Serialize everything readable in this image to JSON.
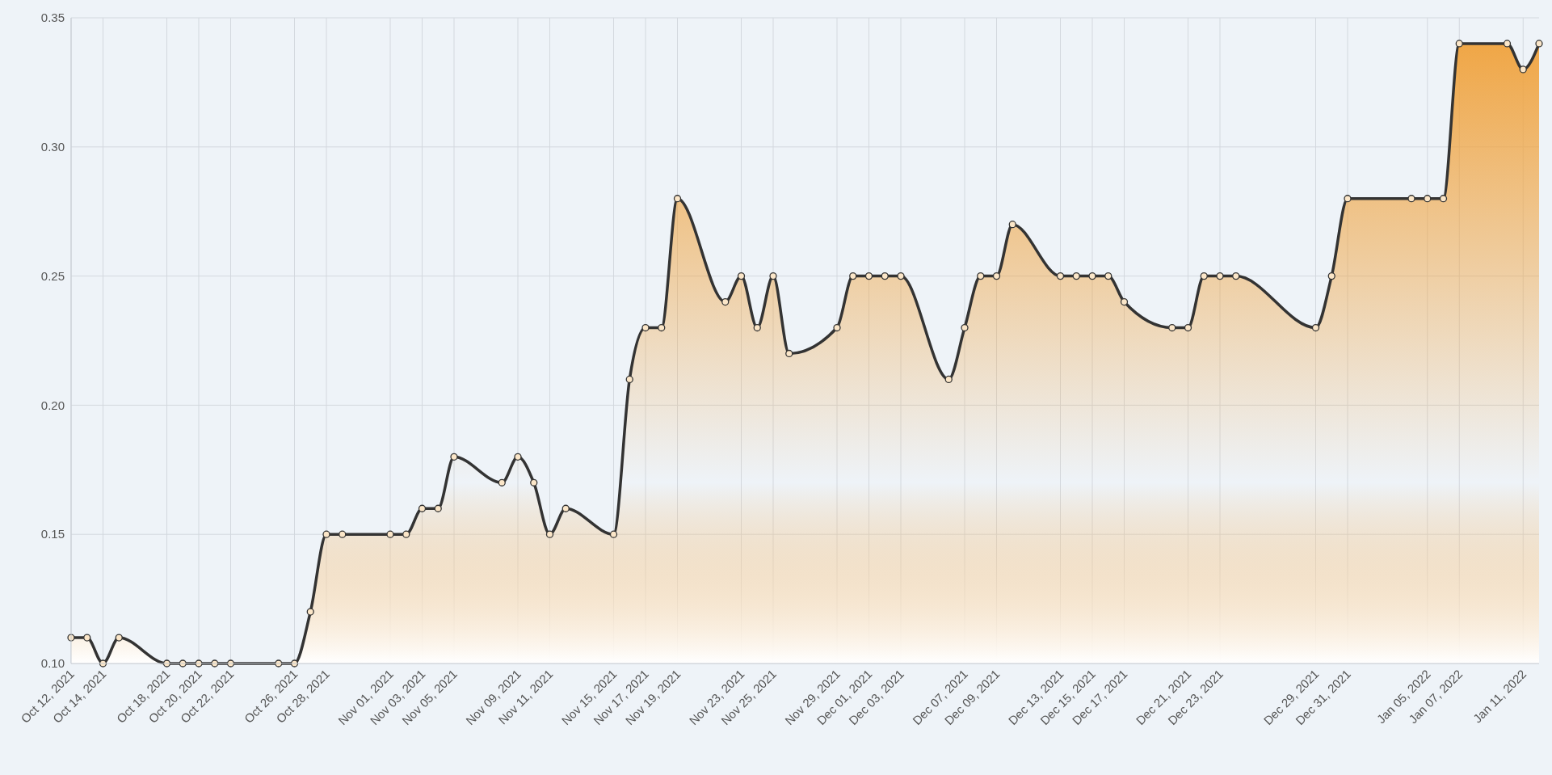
{
  "chart_data": {
    "type": "area",
    "x": [
      "2021-10-12",
      "2021-10-13",
      "2021-10-14",
      "2021-10-15",
      "2021-10-18",
      "2021-10-19",
      "2021-10-20",
      "2021-10-21",
      "2021-10-22",
      "2021-10-25",
      "2021-10-26",
      "2021-10-27",
      "2021-10-28",
      "2021-10-29",
      "2021-11-01",
      "2021-11-02",
      "2021-11-03",
      "2021-11-04",
      "2021-11-05",
      "2021-11-08",
      "2021-11-09",
      "2021-11-10",
      "2021-11-11",
      "2021-11-12",
      "2021-11-15",
      "2021-11-16",
      "2021-11-17",
      "2021-11-18",
      "2021-11-19",
      "2021-11-22",
      "2021-11-23",
      "2021-11-24",
      "2021-11-25",
      "2021-11-26",
      "2021-11-29",
      "2021-11-30",
      "2021-12-01",
      "2021-12-02",
      "2021-12-03",
      "2021-12-06",
      "2021-12-07",
      "2021-12-08",
      "2021-12-09",
      "2021-12-10",
      "2021-12-13",
      "2021-12-14",
      "2021-12-15",
      "2021-12-16",
      "2021-12-17",
      "2021-12-20",
      "2021-12-21",
      "2021-12-22",
      "2021-12-23",
      "2021-12-24",
      "2021-12-29",
      "2021-12-30",
      "2021-12-31",
      "2022-01-04",
      "2022-01-05",
      "2022-01-06",
      "2022-01-07",
      "2022-01-10",
      "2022-01-11",
      "2022-01-12"
    ],
    "series": [
      {
        "color": "#f0a23c",
        "values": [
          0.11,
          0.11,
          0.1,
          0.11,
          0.1,
          0.1,
          0.1,
          0.1,
          0.1,
          0.1,
          0.1,
          0.12,
          0.15,
          0.15,
          0.15,
          0.15,
          0.16,
          0.16,
          0.18,
          0.17,
          0.18,
          0.17,
          0.15,
          0.16,
          0.15,
          0.21,
          0.23,
          0.23,
          0.28,
          0.24,
          0.25,
          0.23,
          0.25,
          0.22,
          0.23,
          0.25,
          0.25,
          0.25,
          0.25,
          0.21,
          0.23,
          0.25,
          0.25,
          0.27,
          0.25,
          0.25,
          0.25,
          0.25,
          0.24,
          0.23,
          0.23,
          0.25,
          0.25,
          0.25,
          0.23,
          0.25,
          0.28,
          0.28,
          0.28,
          0.28,
          0.34,
          0.34,
          0.33,
          0.34
        ]
      }
    ],
    "xlim": [
      "2021-10-12",
      "2022-01-12"
    ],
    "xticks": [
      {
        "value": "2021-10-12",
        "label": "Oct 12, 2021"
      },
      {
        "value": "2021-10-14",
        "label": "Oct 14, 2021"
      },
      {
        "value": "2021-10-18",
        "label": "Oct 18, 2021"
      },
      {
        "value": "2021-10-20",
        "label": "Oct 20, 2021"
      },
      {
        "value": "2021-10-22",
        "label": "Oct 22, 2021"
      },
      {
        "value": "2021-10-26",
        "label": "Oct 26, 2021"
      },
      {
        "value": "2021-10-28",
        "label": "Oct 28, 2021"
      },
      {
        "value": "2021-11-01",
        "label": "Nov 01, 2021"
      },
      {
        "value": "2021-11-03",
        "label": "Nov 03, 2021"
      },
      {
        "value": "2021-11-05",
        "label": "Nov 05, 2021"
      },
      {
        "value": "2021-11-09",
        "label": "Nov 09, 2021"
      },
      {
        "value": "2021-11-11",
        "label": "Nov 11, 2021"
      },
      {
        "value": "2021-11-15",
        "label": "Nov 15, 2021"
      },
      {
        "value": "2021-11-17",
        "label": "Nov 17, 2021"
      },
      {
        "value": "2021-11-19",
        "label": "Nov 19, 2021"
      },
      {
        "value": "2021-11-23",
        "label": "Nov 23, 2021"
      },
      {
        "value": "2021-11-25",
        "label": "Nov 25, 2021"
      },
      {
        "value": "2021-11-29",
        "label": "Nov 29, 2021"
      },
      {
        "value": "2021-12-01",
        "label": "Dec 01, 2021"
      },
      {
        "value": "2021-12-03",
        "label": "Dec 03, 2021"
      },
      {
        "value": "2021-12-07",
        "label": "Dec 07, 2021"
      },
      {
        "value": "2021-12-09",
        "label": "Dec 09, 2021"
      },
      {
        "value": "2021-12-13",
        "label": "Dec 13, 2021"
      },
      {
        "value": "2021-12-15",
        "label": "Dec 15, 2021"
      },
      {
        "value": "2021-12-17",
        "label": "Dec 17, 2021"
      },
      {
        "value": "2021-12-21",
        "label": "Dec 21, 2021"
      },
      {
        "value": "2021-12-23",
        "label": "Dec 23, 2021"
      },
      {
        "value": "2021-12-29",
        "label": "Dec 29, 2021"
      },
      {
        "value": "2021-12-31",
        "label": "Dec 31, 2021"
      },
      {
        "value": "2022-01-05",
        "label": "Jan 05, 2022"
      },
      {
        "value": "2022-01-07",
        "label": "Jan 07, 2022"
      },
      {
        "value": "2022-01-11",
        "label": "Jan 11, 2022"
      }
    ],
    "ylim": [
      0.1,
      0.35
    ],
    "yticks": [
      {
        "value": 0.1,
        "label": "0.10"
      },
      {
        "value": 0.15,
        "label": "0.15"
      },
      {
        "value": 0.2,
        "label": "0.20"
      },
      {
        "value": 0.25,
        "label": "0.25"
      },
      {
        "value": 0.3,
        "label": "0.30"
      },
      {
        "value": 0.35,
        "label": "0.35"
      }
    ],
    "grid": true,
    "marker": "circle",
    "line_style": "solid"
  }
}
